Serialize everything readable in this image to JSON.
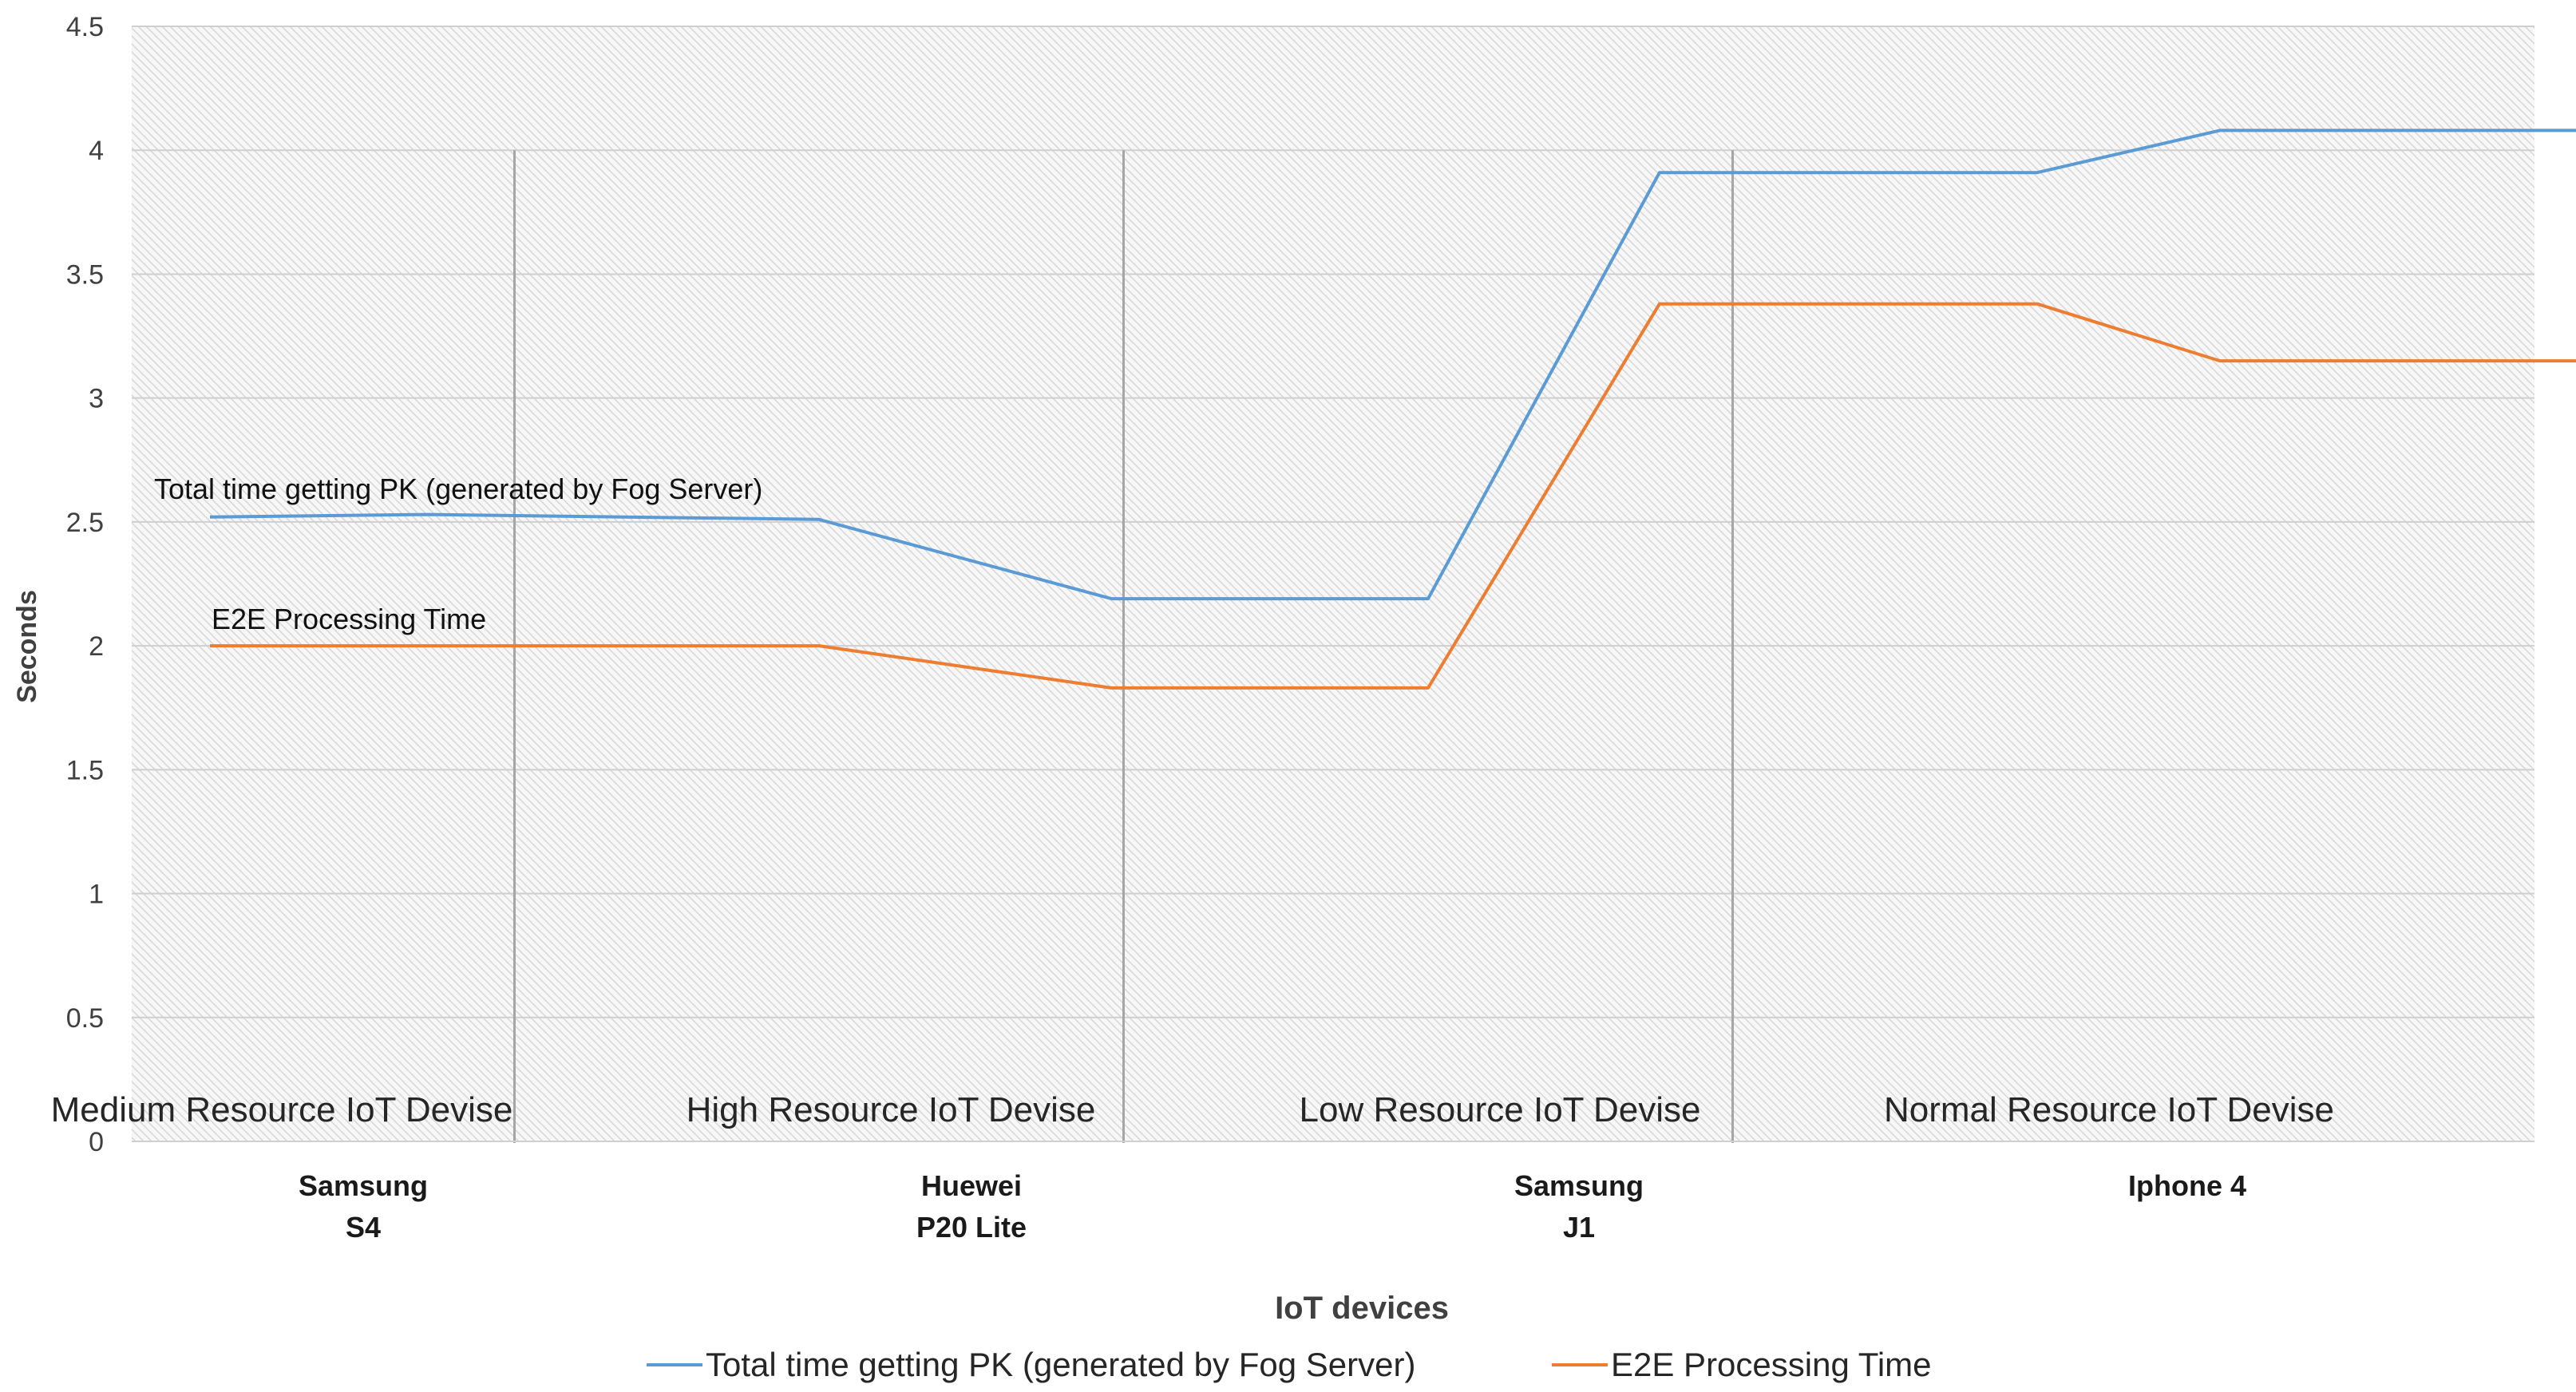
{
  "chart_data": {
    "type": "line",
    "ylabel": "Seconds",
    "xlabel": "IoT devices",
    "ylim": [
      0,
      4.5
    ],
    "yticks": [
      "0",
      "0.5",
      "1",
      "1.5",
      "2",
      "2.5",
      "3",
      "3.5",
      "4",
      "4.5"
    ],
    "grid": "hatched",
    "legend_position": "bottom",
    "x": [
      0,
      0.36,
      1,
      1.48,
      2,
      2.38,
      3,
      3.3,
      4,
      4.1
    ],
    "series": [
      {
        "name": "Total time getting PK (generated by Fog Server)",
        "color": "#5b9bd5",
        "values": [
          2.52,
          2.53,
          2.51,
          2.19,
          2.19,
          3.91,
          3.91,
          4.08,
          4.08,
          4.08
        ]
      },
      {
        "name": "E2E Processing Time",
        "color": "#ed7d31",
        "values": [
          2.0,
          2.0,
          2.0,
          1.83,
          1.83,
          3.38,
          3.38,
          3.15,
          3.15,
          3.15
        ]
      }
    ],
    "devices": [
      {
        "line1": "Samsung",
        "line2": "S4"
      },
      {
        "line1": "Huewei",
        "line2": "P20 Lite"
      },
      {
        "line1": "Samsung",
        "line2": "J1"
      },
      {
        "line1": "Iphone 4",
        "line2": ""
      }
    ],
    "regions": [
      "Medium Resource IoT Devise",
      "High Resource IoT Devise",
      "Low Resource IoT Devise",
      "Normal Resource IoT Devise"
    ],
    "annotations": {
      "total": "Total time getting PK (generated by Fog Server)",
      "e2e": "E2E Processing Time"
    }
  }
}
